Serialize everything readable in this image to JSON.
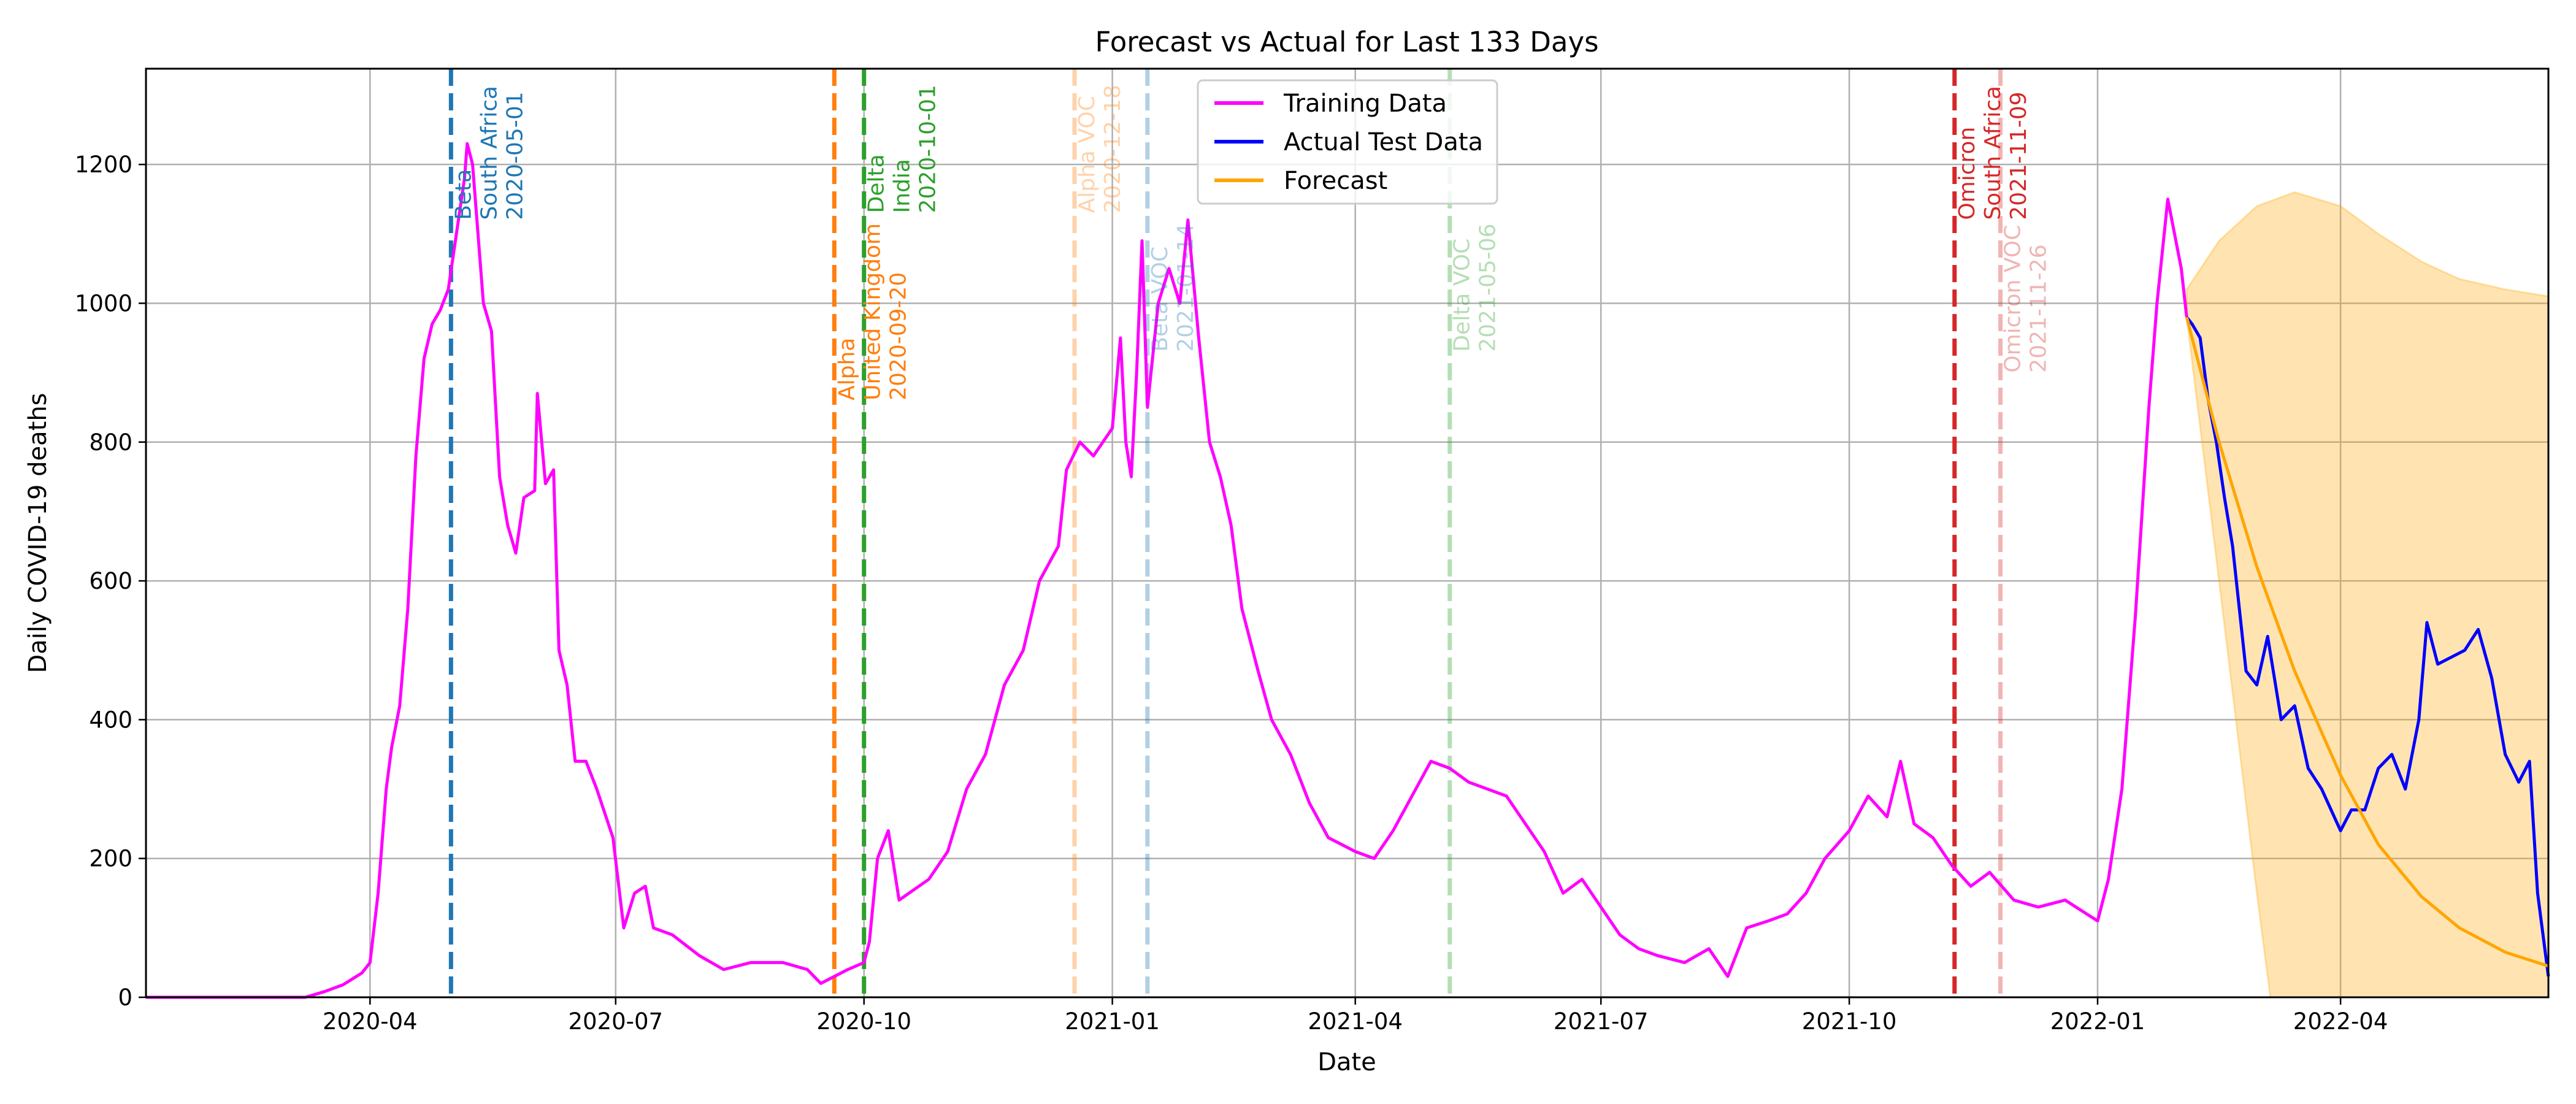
{
  "chart_data": {
    "type": "line",
    "title": "Forecast vs Actual for Last 133 Days",
    "xlabel": "Date",
    "ylabel": "Daily COVID-19 deaths",
    "xlim": [
      "2020-01-09",
      "2022-06-17"
    ],
    "ylim": [
      0,
      1338
    ],
    "grid": true,
    "legend_position": "top-center",
    "x_ticks": [
      {
        "date": "2020-04-01",
        "label": "2020-04"
      },
      {
        "date": "2020-07-01",
        "label": "2020-07"
      },
      {
        "date": "2020-10-01",
        "label": "2020-10"
      },
      {
        "date": "2021-01-01",
        "label": "2021-01"
      },
      {
        "date": "2021-04-01",
        "label": "2021-04"
      },
      {
        "date": "2021-07-01",
        "label": "2021-07"
      },
      {
        "date": "2021-10-01",
        "label": "2021-10"
      },
      {
        "date": "2022-01-01",
        "label": "2022-01"
      },
      {
        "date": "2022-04-01",
        "label": "2022-04"
      }
    ],
    "y_ticks": [
      {
        "value": 0,
        "label": "0"
      },
      {
        "value": 200,
        "label": "200"
      },
      {
        "value": 400,
        "label": "400"
      },
      {
        "value": 600,
        "label": "600"
      },
      {
        "value": 800,
        "label": "800"
      },
      {
        "value": 1000,
        "label": "1000"
      },
      {
        "value": 1200,
        "label": "1200"
      }
    ],
    "series": [
      {
        "name": "Training Data",
        "color": "#ff00ff",
        "points": [
          [
            "2020-01-09",
            0
          ],
          [
            "2020-03-08",
            0
          ],
          [
            "2020-03-15",
            8
          ],
          [
            "2020-03-22",
            18
          ],
          [
            "2020-03-29",
            35
          ],
          [
            "2020-04-01",
            50
          ],
          [
            "2020-04-04",
            150
          ],
          [
            "2020-04-07",
            300
          ],
          [
            "2020-04-09",
            360
          ],
          [
            "2020-04-12",
            420
          ],
          [
            "2020-04-15",
            560
          ],
          [
            "2020-04-18",
            780
          ],
          [
            "2020-04-21",
            920
          ],
          [
            "2020-04-24",
            970
          ],
          [
            "2020-04-27",
            990
          ],
          [
            "2020-04-30",
            1020
          ],
          [
            "2020-05-03",
            1100
          ],
          [
            "2020-05-06",
            1180
          ],
          [
            "2020-05-07",
            1230
          ],
          [
            "2020-05-09",
            1200
          ],
          [
            "2020-05-11",
            1100
          ],
          [
            "2020-05-13",
            1000
          ],
          [
            "2020-05-16",
            960
          ],
          [
            "2020-05-19",
            750
          ],
          [
            "2020-05-22",
            680
          ],
          [
            "2020-05-25",
            640
          ],
          [
            "2020-05-28",
            720
          ],
          [
            "2020-06-01",
            730
          ],
          [
            "2020-06-02",
            870
          ],
          [
            "2020-06-05",
            740
          ],
          [
            "2020-06-08",
            760
          ],
          [
            "2020-06-10",
            500
          ],
          [
            "2020-06-13",
            450
          ],
          [
            "2020-06-16",
            340
          ],
          [
            "2020-06-20",
            340
          ],
          [
            "2020-06-24",
            300
          ],
          [
            "2020-06-30",
            230
          ],
          [
            "2020-07-04",
            100
          ],
          [
            "2020-07-08",
            150
          ],
          [
            "2020-07-12",
            160
          ],
          [
            "2020-07-15",
            100
          ],
          [
            "2020-07-22",
            90
          ],
          [
            "2020-08-01",
            60
          ],
          [
            "2020-08-10",
            40
          ],
          [
            "2020-08-20",
            50
          ],
          [
            "2020-09-01",
            50
          ],
          [
            "2020-09-10",
            40
          ],
          [
            "2020-09-15",
            20
          ],
          [
            "2020-09-25",
            40
          ],
          [
            "2020-10-01",
            50
          ],
          [
            "2020-10-03",
            80
          ],
          [
            "2020-10-06",
            200
          ],
          [
            "2020-10-10",
            240
          ],
          [
            "2020-10-14",
            140
          ],
          [
            "2020-10-25",
            170
          ],
          [
            "2020-11-01",
            210
          ],
          [
            "2020-11-08",
            300
          ],
          [
            "2020-11-15",
            350
          ],
          [
            "2020-11-22",
            450
          ],
          [
            "2020-11-29",
            500
          ],
          [
            "2020-12-05",
            600
          ],
          [
            "2020-12-12",
            650
          ],
          [
            "2020-12-15",
            760
          ],
          [
            "2020-12-20",
            800
          ],
          [
            "2020-12-25",
            780
          ],
          [
            "2021-01-01",
            820
          ],
          [
            "2021-01-04",
            950
          ],
          [
            "2021-01-06",
            800
          ],
          [
            "2021-01-08",
            750
          ],
          [
            "2021-01-10",
            900
          ],
          [
            "2021-01-12",
            1090
          ],
          [
            "2021-01-14",
            850
          ],
          [
            "2021-01-18",
            1000
          ],
          [
            "2021-01-22",
            1050
          ],
          [
            "2021-01-26",
            1000
          ],
          [
            "2021-01-29",
            1120
          ],
          [
            "2021-02-02",
            950
          ],
          [
            "2021-02-06",
            800
          ],
          [
            "2021-02-10",
            750
          ],
          [
            "2021-02-14",
            680
          ],
          [
            "2021-02-18",
            560
          ],
          [
            "2021-02-24",
            470
          ],
          [
            "2021-03-01",
            400
          ],
          [
            "2021-03-08",
            350
          ],
          [
            "2021-03-15",
            280
          ],
          [
            "2021-03-22",
            230
          ],
          [
            "2021-04-01",
            210
          ],
          [
            "2021-04-08",
            200
          ],
          [
            "2021-04-15",
            240
          ],
          [
            "2021-04-22",
            290
          ],
          [
            "2021-04-29",
            340
          ],
          [
            "2021-05-06",
            330
          ],
          [
            "2021-05-13",
            310
          ],
          [
            "2021-05-20",
            300
          ],
          [
            "2021-05-27",
            290
          ],
          [
            "2021-06-03",
            250
          ],
          [
            "2021-06-10",
            210
          ],
          [
            "2021-06-17",
            150
          ],
          [
            "2021-06-24",
            170
          ],
          [
            "2021-07-01",
            130
          ],
          [
            "2021-07-08",
            90
          ],
          [
            "2021-07-15",
            70
          ],
          [
            "2021-07-22",
            60
          ],
          [
            "2021-08-01",
            50
          ],
          [
            "2021-08-10",
            70
          ],
          [
            "2021-08-17",
            30
          ],
          [
            "2021-08-24",
            100
          ],
          [
            "2021-09-01",
            110
          ],
          [
            "2021-09-08",
            120
          ],
          [
            "2021-09-15",
            150
          ],
          [
            "2021-09-22",
            200
          ],
          [
            "2021-10-01",
            240
          ],
          [
            "2021-10-08",
            290
          ],
          [
            "2021-10-15",
            260
          ],
          [
            "2021-10-20",
            340
          ],
          [
            "2021-10-25",
            250
          ],
          [
            "2021-11-01",
            230
          ],
          [
            "2021-11-08",
            190
          ],
          [
            "2021-11-15",
            160
          ],
          [
            "2021-11-22",
            180
          ],
          [
            "2021-12-01",
            140
          ],
          [
            "2021-12-10",
            130
          ],
          [
            "2021-12-20",
            140
          ],
          [
            "2021-12-28",
            120
          ],
          [
            "2022-01-01",
            110
          ],
          [
            "2022-01-05",
            170
          ],
          [
            "2022-01-10",
            300
          ],
          [
            "2022-01-15",
            550
          ],
          [
            "2022-01-20",
            850
          ],
          [
            "2022-01-23",
            1000
          ],
          [
            "2022-01-27",
            1150
          ],
          [
            "2022-01-29",
            1110
          ],
          [
            "2022-02-01",
            1050
          ],
          [
            "2022-02-03",
            980
          ]
        ]
      },
      {
        "name": "Actual Test Data",
        "color": "#0000ff",
        "points": [
          [
            "2022-02-03",
            980
          ],
          [
            "2022-02-05",
            970
          ],
          [
            "2022-02-08",
            950
          ],
          [
            "2022-02-11",
            860
          ],
          [
            "2022-02-14",
            800
          ],
          [
            "2022-02-17",
            720
          ],
          [
            "2022-02-20",
            650
          ],
          [
            "2022-02-25",
            470
          ],
          [
            "2022-03-01",
            450
          ],
          [
            "2022-03-05",
            520
          ],
          [
            "2022-03-10",
            400
          ],
          [
            "2022-03-15",
            420
          ],
          [
            "2022-03-20",
            330
          ],
          [
            "2022-03-25",
            300
          ],
          [
            "2022-04-01",
            240
          ],
          [
            "2022-04-05",
            270
          ],
          [
            "2022-04-10",
            270
          ],
          [
            "2022-04-15",
            330
          ],
          [
            "2022-04-20",
            350
          ],
          [
            "2022-04-25",
            300
          ],
          [
            "2022-04-30",
            400
          ],
          [
            "2022-05-03",
            540
          ],
          [
            "2022-05-07",
            480
          ],
          [
            "2022-05-12",
            490
          ],
          [
            "2022-05-17",
            500
          ],
          [
            "2022-05-22",
            530
          ],
          [
            "2022-05-27",
            460
          ],
          [
            "2022-06-01",
            350
          ],
          [
            "2022-06-06",
            310
          ],
          [
            "2022-06-10",
            340
          ],
          [
            "2022-06-13",
            150
          ],
          [
            "2022-06-15",
            90
          ],
          [
            "2022-06-17",
            30
          ]
        ]
      },
      {
        "name": "Forecast",
        "color": "#ffa500",
        "points": [
          [
            "2022-02-03",
            980
          ],
          [
            "2022-02-15",
            800
          ],
          [
            "2022-03-01",
            620
          ],
          [
            "2022-03-15",
            470
          ],
          [
            "2022-04-01",
            320
          ],
          [
            "2022-04-15",
            220
          ],
          [
            "2022-05-01",
            145
          ],
          [
            "2022-05-15",
            100
          ],
          [
            "2022-06-01",
            65
          ],
          [
            "2022-06-17",
            45
          ]
        ]
      }
    ],
    "confidence_band": {
      "color": "#ffa500",
      "upper": [
        [
          "2022-02-03",
          1020
        ],
        [
          "2022-02-15",
          1090
        ],
        [
          "2022-03-01",
          1140
        ],
        [
          "2022-03-15",
          1160
        ],
        [
          "2022-04-01",
          1140
        ],
        [
          "2022-04-15",
          1100
        ],
        [
          "2022-05-01",
          1060
        ],
        [
          "2022-05-15",
          1035
        ],
        [
          "2022-06-01",
          1020
        ],
        [
          "2022-06-17",
          1010
        ]
      ],
      "lower": [
        [
          "2022-02-03",
          980
        ],
        [
          "2022-02-15",
          600
        ],
        [
          "2022-03-01",
          150
        ],
        [
          "2022-03-06",
          0
        ],
        [
          "2022-06-17",
          0
        ]
      ]
    },
    "annotations": [
      {
        "date": "2020-05-01",
        "color": "#1f77b4",
        "alpha": 1,
        "label_y": 1120,
        "lines": [
          "Beta",
          "South Africa",
          "2020-05-01"
        ]
      },
      {
        "date": "2020-09-20",
        "color": "#ff7f0e",
        "alpha": 1,
        "label_y": 860,
        "lines": [
          "Alpha",
          "United Kingdom",
          "2020-09-20"
        ]
      },
      {
        "date": "2020-10-01",
        "color": "#2ca02c",
        "alpha": 1,
        "label_y": 1130,
        "lines": [
          "Delta",
          "India",
          "2020-10-01"
        ]
      },
      {
        "date": "2020-12-18",
        "color": "#ff7f0e",
        "alpha": 0.35,
        "label_y": 1130,
        "lines": [
          "Alpha VOC",
          "2020-12-18"
        ]
      },
      {
        "date": "2021-01-14",
        "color": "#1f77b4",
        "alpha": 0.35,
        "label_y": 930,
        "lines": [
          "Beta VOC",
          "2021-01-14"
        ]
      },
      {
        "date": "2021-05-06",
        "color": "#2ca02c",
        "alpha": 0.35,
        "label_y": 930,
        "lines": [
          "Delta VOC",
          "2021-05-06"
        ]
      },
      {
        "date": "2021-11-09",
        "color": "#d62728",
        "alpha": 1,
        "label_y": 1120,
        "lines": [
          "Omicron",
          "South Africa",
          "2021-11-09"
        ]
      },
      {
        "date": "2021-11-26",
        "color": "#d62728",
        "alpha": 0.35,
        "label_y": 900,
        "lines": [
          "Omicron VOC",
          "2021-11-26"
        ]
      }
    ]
  }
}
